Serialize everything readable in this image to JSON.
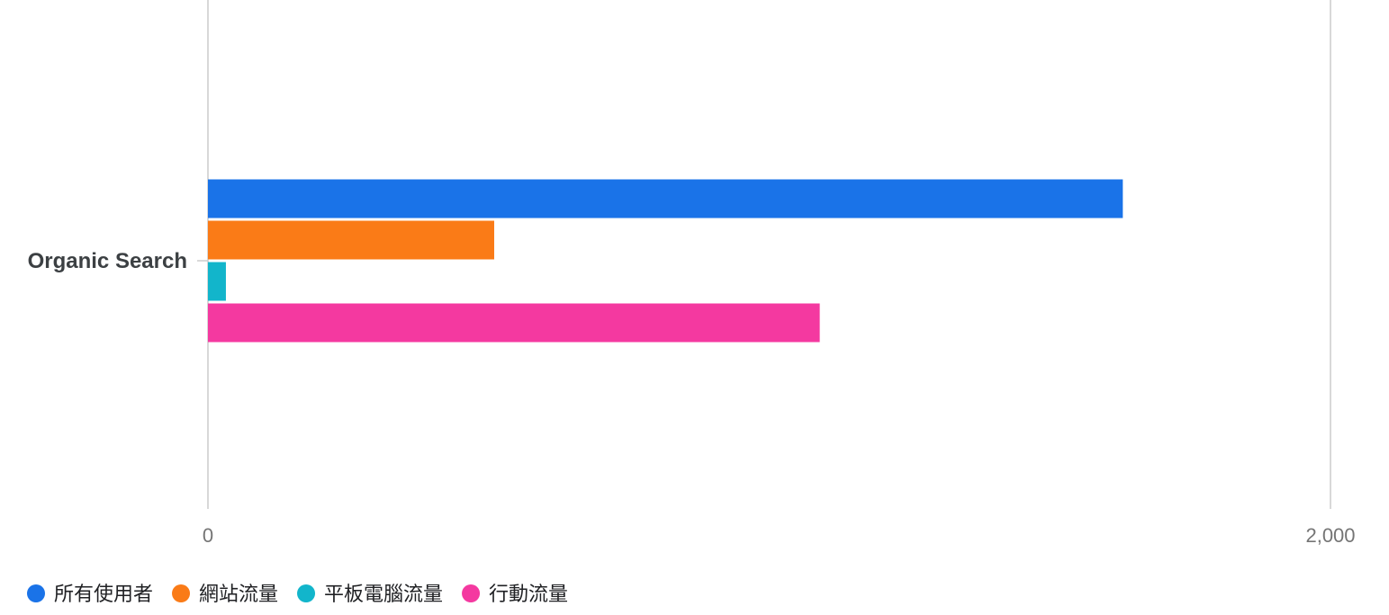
{
  "chart_data": {
    "type": "bar",
    "orientation": "horizontal",
    "categories": [
      "Organic Search"
    ],
    "series": [
      {
        "name": "所有使用者",
        "color": "#1a73e8",
        "values": [
          1630
        ]
      },
      {
        "name": "網站流量",
        "color": "#fa7b17",
        "values": [
          510
        ]
      },
      {
        "name": "平板電腦流量",
        "color": "#12b5cb",
        "values": [
          32
        ]
      },
      {
        "name": "行動流量",
        "color": "#f439a0",
        "values": [
          1090
        ]
      }
    ],
    "title": "",
    "xlabel": "",
    "ylabel": "",
    "xlim": [
      0,
      2000
    ],
    "x_ticks": [
      "0",
      "2,000"
    ],
    "grid": true,
    "legend_position": "bottom-left"
  }
}
